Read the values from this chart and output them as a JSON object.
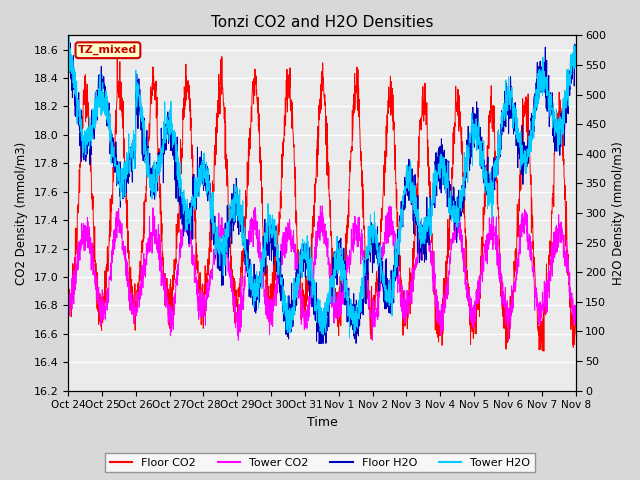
{
  "title": "Tonzi CO2 and H2O Densities",
  "xlabel": "Time",
  "ylabel_left": "CO2 Density (mmol/m3)",
  "ylabel_right": "H2O Density (mmol/m3)",
  "ylim_left": [
    16.2,
    18.7
  ],
  "ylim_right": [
    0,
    600
  ],
  "yticks_left": [
    16.2,
    16.4,
    16.6,
    16.8,
    17.0,
    17.2,
    17.4,
    17.6,
    17.8,
    18.0,
    18.2,
    18.4,
    18.6
  ],
  "yticks_right": [
    0,
    50,
    100,
    150,
    200,
    250,
    300,
    350,
    400,
    450,
    500,
    550,
    600
  ],
  "xtick_labels": [
    "Oct 24",
    "Oct 25",
    "Oct 26",
    "Oct 27",
    "Oct 28",
    "Oct 29",
    "Oct 30",
    "Oct 31",
    "Nov 1",
    "Nov 2",
    "Nov 3",
    "Nov 4",
    "Nov 5",
    "Nov 6",
    "Nov 7",
    "Nov 8"
  ],
  "annotation_text": "TZ_mixed",
  "annotation_color": "#cc0000",
  "colors": {
    "floor_co2": "#ff0000",
    "tower_co2": "#ff00ff",
    "floor_h2o": "#0000bb",
    "tower_h2o": "#00ccff"
  },
  "legend_labels": [
    "Floor CO2",
    "Tower CO2",
    "Floor H2O",
    "Tower H2O"
  ],
  "background_color": "#d8d8d8",
  "plot_bg": "#ebebeb",
  "n_points": 2160,
  "n_days": 15,
  "seed": 42
}
